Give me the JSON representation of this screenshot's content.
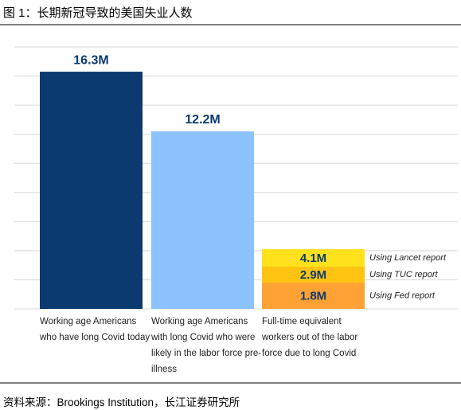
{
  "title": "图 1：长期新冠导致的美国失业人数",
  "source": "资料来源：Brookings Institution，长江证券研究所",
  "chart_data": {
    "type": "bar",
    "categories": [
      "Working age Americans who have long Covid today",
      "Working age Americans with long Covid who were likely in the labor force pre-illness",
      "Full-time equivalent workers out of the labor force due to long Covid"
    ],
    "values": [
      16.3,
      12.2,
      null
    ],
    "value_labels": [
      "16.3M",
      "12.2M",
      null
    ],
    "bar_colors": [
      "#0b3a6f",
      "#8cc3ff",
      null
    ],
    "series": [
      {
        "name": "Using Lancet report",
        "color": "#ffe11c",
        "values": [
          null,
          null,
          4.1
        ],
        "value_labels": [
          null,
          null,
          "4.1M"
        ]
      },
      {
        "name": "Using TUC report",
        "color": "#ffc412",
        "values": [
          null,
          null,
          2.9
        ],
        "value_labels": [
          null,
          null,
          "2.9M"
        ]
      },
      {
        "name": "Using Fed report",
        "color": "#ffa235",
        "values": [
          null,
          null,
          1.8
        ],
        "value_labels": [
          null,
          null,
          "1.8M"
        ]
      }
    ],
    "ylim": [
      0,
      18
    ],
    "yticks": [
      0,
      2,
      4,
      6,
      8,
      10,
      12,
      14,
      16,
      18
    ],
    "grid": true
  }
}
